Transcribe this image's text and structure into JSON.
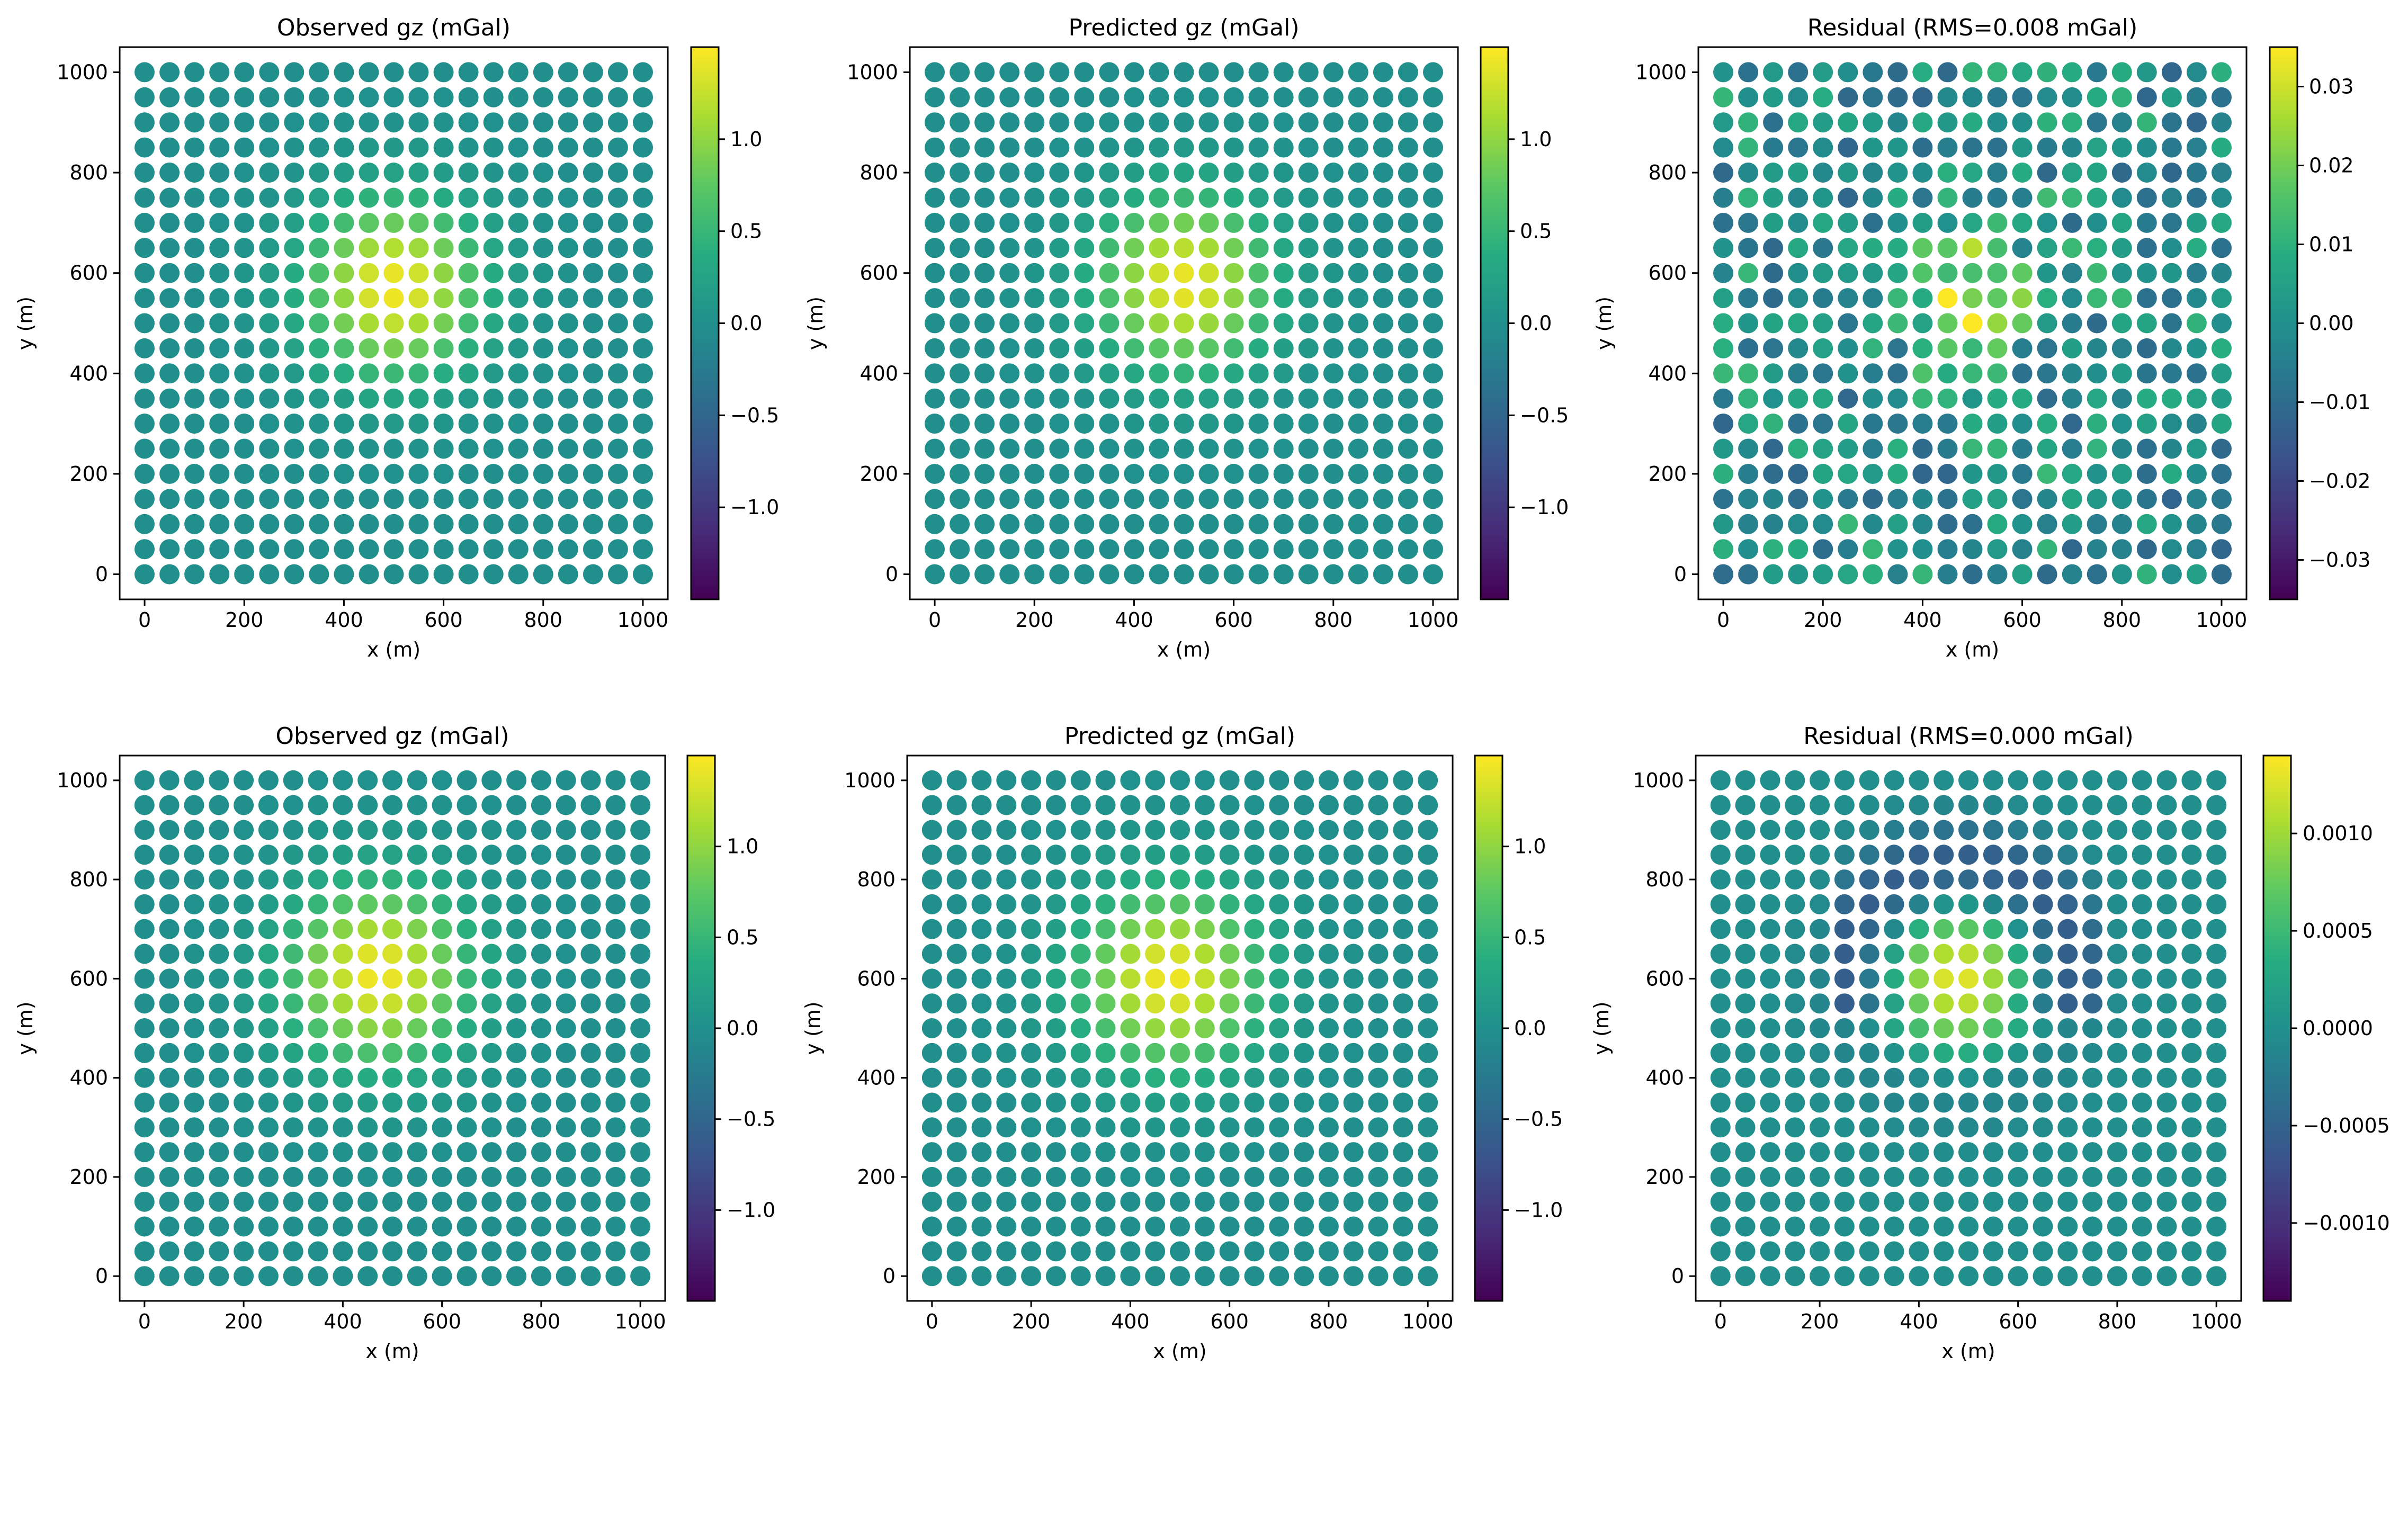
{
  "chart_data": [
    {
      "type": "scatter",
      "title": "Observed gz (mGal)",
      "xlabel": "x (m)",
      "ylabel": "y (m)",
      "xlim": [
        -50,
        1050
      ],
      "ylim": [
        -50,
        1050
      ],
      "xticks": [
        0,
        200,
        400,
        600,
        800,
        1000
      ],
      "yticks": [
        0,
        200,
        400,
        600,
        800,
        1000
      ],
      "grid": false,
      "x": {
        "start": 0,
        "stop": 1000,
        "step": 50
      },
      "y": {
        "start": 0,
        "stop": 1000,
        "step": 50
      },
      "colormap": "viridis",
      "colorbar": {
        "min": -1.5,
        "max": 1.5,
        "ticks": [
          "−1.0",
          "−0.5",
          "0.0",
          "0.5",
          "1.0"
        ],
        "tick_values": [
          -1.0,
          -0.5,
          0.0,
          0.5,
          1.0
        ]
      },
      "field": {
        "kind": "gaussian",
        "peak": 1.45,
        "center": [
          500,
          570
        ],
        "sigma": 120
      }
    },
    {
      "type": "scatter",
      "title": "Predicted gz (mGal)",
      "xlabel": "x (m)",
      "ylabel": "y (m)",
      "xlim": [
        -50,
        1050
      ],
      "ylim": [
        -50,
        1050
      ],
      "xticks": [
        0,
        200,
        400,
        600,
        800,
        1000
      ],
      "yticks": [
        0,
        200,
        400,
        600,
        800,
        1000
      ],
      "grid": false,
      "x": {
        "start": 0,
        "stop": 1000,
        "step": 50
      },
      "y": {
        "start": 0,
        "stop": 1000,
        "step": 50
      },
      "colormap": "viridis",
      "colorbar": {
        "min": -1.5,
        "max": 1.5,
        "ticks": [
          "−1.0",
          "−0.5",
          "0.0",
          "0.5",
          "1.0"
        ],
        "tick_values": [
          -1.0,
          -0.5,
          0.0,
          0.5,
          1.0
        ]
      },
      "field": {
        "kind": "gaussian",
        "peak": 1.42,
        "center": [
          500,
          580
        ],
        "sigma": 120
      }
    },
    {
      "type": "scatter",
      "title": "Residual (RMS=0.008 mGal)",
      "xlabel": "x (m)",
      "ylabel": "y (m)",
      "xlim": [
        -50,
        1050
      ],
      "ylim": [
        -50,
        1050
      ],
      "xticks": [
        0,
        200,
        400,
        600,
        800,
        1000
      ],
      "yticks": [
        0,
        200,
        400,
        600,
        800,
        1000
      ],
      "grid": false,
      "x": {
        "start": 0,
        "stop": 1000,
        "step": 50
      },
      "y": {
        "start": 0,
        "stop": 1000,
        "step": 50
      },
      "colormap": "viridis",
      "colorbar": {
        "min": -0.035,
        "max": 0.035,
        "ticks": [
          "−0.03",
          "−0.02",
          "−0.01",
          "0.00",
          "0.01",
          "0.02",
          "0.03"
        ],
        "tick_values": [
          -0.03,
          -0.02,
          -0.01,
          0.0,
          0.01,
          0.02,
          0.03
        ]
      },
      "field": {
        "kind": "noise",
        "amplitude": 0.012,
        "peak": 0.03,
        "center": [
          500,
          570
        ],
        "sigma": 90
      }
    },
    {
      "type": "scatter",
      "title": "Observed gz (mGal)",
      "xlabel": "x (m)",
      "ylabel": "y (m)",
      "xlim": [
        -50,
        1050
      ],
      "ylim": [
        -50,
        1050
      ],
      "xticks": [
        0,
        200,
        400,
        600,
        800,
        1000
      ],
      "yticks": [
        0,
        200,
        400,
        600,
        800,
        1000
      ],
      "grid": false,
      "x": {
        "start": 0,
        "stop": 1000,
        "step": 50
      },
      "y": {
        "start": 0,
        "stop": 1000,
        "step": 50
      },
      "colormap": "viridis",
      "colorbar": {
        "min": -1.5,
        "max": 1.5,
        "ticks": [
          "−1.0",
          "−0.5",
          "0.0",
          "0.5",
          "1.0"
        ],
        "tick_values": [
          -1.0,
          -0.5,
          0.0,
          0.5,
          1.0
        ]
      },
      "field": {
        "kind": "gaussian",
        "peak": 1.45,
        "center": [
          470,
          610
        ],
        "sigma": 125
      }
    },
    {
      "type": "scatter",
      "title": "Predicted gz (mGal)",
      "xlabel": "x (m)",
      "ylabel": "y (m)",
      "xlim": [
        -50,
        1050
      ],
      "ylim": [
        -50,
        1050
      ],
      "xticks": [
        0,
        200,
        400,
        600,
        800,
        1000
      ],
      "yticks": [
        0,
        200,
        400,
        600,
        800,
        1000
      ],
      "grid": false,
      "x": {
        "start": 0,
        "stop": 1000,
        "step": 50
      },
      "y": {
        "start": 0,
        "stop": 1000,
        "step": 50
      },
      "colormap": "viridis",
      "colorbar": {
        "min": -1.5,
        "max": 1.5,
        "ticks": [
          "−1.0",
          "−0.5",
          "0.0",
          "0.5",
          "1.0"
        ],
        "tick_values": [
          -1.0,
          -0.5,
          0.0,
          0.5,
          1.0
        ]
      },
      "field": {
        "kind": "gaussian",
        "peak": 1.45,
        "center": [
          480,
          600
        ],
        "sigma": 125
      }
    },
    {
      "type": "scatter",
      "title": "Residual (RMS=0.000 mGal)",
      "xlabel": "x (m)",
      "ylabel": "y (m)",
      "xlim": [
        -50,
        1050
      ],
      "ylim": [
        -50,
        1050
      ],
      "xticks": [
        0,
        200,
        400,
        600,
        800,
        1000
      ],
      "yticks": [
        0,
        200,
        400,
        600,
        800,
        1000
      ],
      "grid": false,
      "x": {
        "start": 0,
        "stop": 1000,
        "step": 50
      },
      "y": {
        "start": 0,
        "stop": 1000,
        "step": 50
      },
      "colormap": "viridis",
      "colorbar": {
        "min": -0.0014,
        "max": 0.0014,
        "ticks": [
          "−0.0010",
          "−0.0005",
          "0.0000",
          "0.0005",
          "0.0010"
        ],
        "tick_values": [
          -0.001,
          -0.0005,
          0.0,
          0.0005,
          0.001
        ]
      },
      "field": {
        "kind": "dipole",
        "peak": 0.0013,
        "center": [
          480,
          600
        ],
        "sigma": 110,
        "ring_min": -0.0007,
        "ring_sigma": 200
      }
    }
  ]
}
